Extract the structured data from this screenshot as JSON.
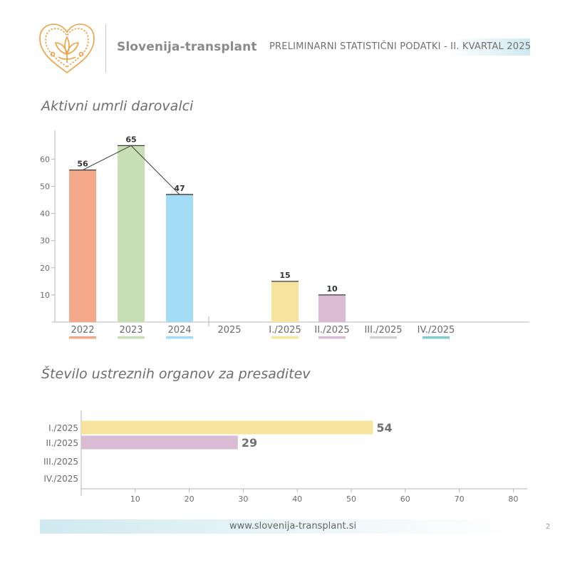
{
  "header": {
    "logo_icon": "heart-flower-logo-icon",
    "org_name": "Slovenija-transplant",
    "report_title": "PRELIMINARNI STATISTIČNI PODATKI - II. KVARTAL 2025",
    "accent_color": "#f0a040"
  },
  "chart_data": [
    {
      "type": "bar",
      "orientation": "vertical",
      "title": "Aktivni umrli darovalci",
      "categories": [
        "2022",
        "2023",
        "2024",
        "2025",
        "I./2025",
        "II./2025",
        "III./2025",
        "IV./2025"
      ],
      "values": [
        56,
        65,
        47,
        null,
        15,
        10,
        null,
        null
      ],
      "value_labels": [
        "56",
        "65",
        "47",
        "",
        "15",
        "10",
        "",
        ""
      ],
      "colors": [
        "#f4a98a",
        "#c8dfb6",
        "#a3dcf5",
        "",
        "#f7e49c",
        "#d9bcd3",
        "#d3d3d3",
        "#7fcfd0"
      ],
      "trend_line_categories": [
        "2022",
        "2023",
        "2024"
      ],
      "yticks": [
        "10",
        "20",
        "30",
        "40",
        "50",
        "60"
      ],
      "ylim": [
        0,
        70
      ],
      "grid": false,
      "xlabel": "",
      "ylabel": ""
    },
    {
      "type": "bar",
      "orientation": "horizontal",
      "title": "Število ustreznih organov za presaditev",
      "categories": [
        "I./2025",
        "II./2025",
        "III./2025",
        "IV./2025"
      ],
      "values": [
        54,
        29,
        null,
        null
      ],
      "value_labels": [
        "54",
        "29",
        "",
        ""
      ],
      "colors": [
        "#f7e49c",
        "#d9bcd3",
        "#d3d3d3",
        "#7fcfd0"
      ],
      "xticks": [
        "10",
        "20",
        "30",
        "40",
        "50",
        "60",
        "70",
        "80"
      ],
      "xlim": [
        0,
        83
      ],
      "grid": false,
      "xlabel": "",
      "ylabel": ""
    }
  ],
  "footer": {
    "url": "www.slovenija-transplant.si",
    "page_number": "2"
  }
}
